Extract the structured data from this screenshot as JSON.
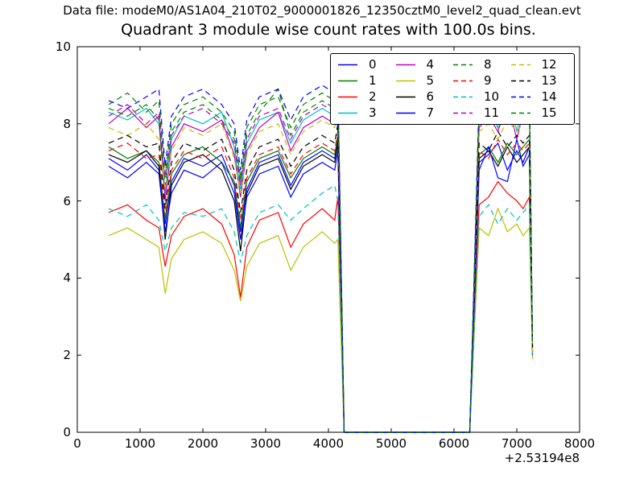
{
  "figure": {
    "data_file_label": "Data file: modeM0/AS1A04_210T02_9000001826_12350cztM0_level2_quad_clean.evt"
  },
  "chart_data": {
    "type": "line",
    "title": "Quadrant 3 module wise count rates with 100.0s bins.",
    "xlabel": "",
    "ylabel": "",
    "xlim": [
      0,
      8000
    ],
    "ylim": [
      0,
      10
    ],
    "grid": false,
    "x_axis_offset": "+2.53194e8",
    "xtick_values": [
      0,
      1000,
      2000,
      3000,
      4000,
      5000,
      6000,
      7000,
      8000
    ],
    "xtick_labels": [
      "0",
      "1000",
      "2000",
      "3000",
      "4000",
      "5000",
      "6000",
      "7000",
      "8000"
    ],
    "ytick_values": [
      0,
      2,
      4,
      6,
      8,
      10
    ],
    "ytick_labels": [
      "0",
      "2",
      "4",
      "6",
      "8",
      "10"
    ],
    "legend": {
      "position": "upper center-right",
      "columns": 4,
      "rows": 4
    },
    "x": [
      500,
      800,
      1100,
      1300,
      1400,
      1500,
      1700,
      2000,
      2300,
      2500,
      2600,
      2700,
      2900,
      3200,
      3400,
      3600,
      3900,
      4100,
      4150,
      4250,
      5000,
      6150,
      6250,
      6400,
      6550,
      6700,
      6850,
      7000,
      7100,
      7200,
      7250
    ],
    "series": [
      {
        "name": "0",
        "color": "#0000ff",
        "linestyle": "solid",
        "y": [
          7.1,
          6.8,
          7.2,
          6.8,
          5.4,
          6.5,
          7.1,
          6.9,
          7.2,
          6.4,
          5.2,
          6.3,
          7.0,
          7.2,
          6.4,
          7.0,
          7.3,
          7.1,
          7.6,
          0,
          0,
          0,
          0,
          7.0,
          7.2,
          7.5,
          6.8,
          7.3,
          7.0,
          7.4,
          2.1
        ]
      },
      {
        "name": "1",
        "color": "#008000",
        "linestyle": "solid",
        "y": [
          7.4,
          7.1,
          7.3,
          7.0,
          5.5,
          6.7,
          7.2,
          7.4,
          7.0,
          6.5,
          5.3,
          6.5,
          7.1,
          7.3,
          6.6,
          7.1,
          7.4,
          7.2,
          7.7,
          0,
          0,
          0,
          0,
          7.2,
          7.4,
          7.0,
          7.5,
          7.2,
          7.4,
          7.6,
          2.1
        ]
      },
      {
        "name": "2",
        "color": "#ff0000",
        "linestyle": "solid",
        "y": [
          5.7,
          5.9,
          5.5,
          5.3,
          4.3,
          5.1,
          5.6,
          5.8,
          5.4,
          4.6,
          3.5,
          4.8,
          5.5,
          5.7,
          4.8,
          5.4,
          5.8,
          5.5,
          6.1,
          0,
          0,
          0,
          0,
          5.9,
          6.1,
          6.5,
          6.2,
          6.0,
          5.8,
          6.1,
          2.0
        ]
      },
      {
        "name": "3",
        "color": "#00bfbf",
        "linestyle": "solid",
        "y": [
          8.3,
          8.1,
          8.4,
          8.0,
          6.2,
          7.6,
          8.2,
          8.0,
          8.3,
          7.4,
          6.3,
          7.5,
          8.1,
          8.3,
          7.5,
          8.1,
          8.4,
          8.2,
          8.6,
          0,
          0,
          0,
          0,
          8.1,
          8.3,
          7.9,
          9.0,
          7.8,
          8.5,
          8.7,
          2.2
        ]
      },
      {
        "name": "4",
        "color": "#bf00bf",
        "linestyle": "solid",
        "y": [
          8.0,
          8.4,
          7.9,
          8.2,
          6.0,
          7.4,
          8.0,
          7.8,
          8.1,
          7.2,
          6.1,
          7.3,
          7.9,
          8.3,
          7.3,
          7.9,
          8.2,
          8.0,
          8.4,
          0,
          0,
          0,
          0,
          7.9,
          8.2,
          7.8,
          8.6,
          7.6,
          8.3,
          8.5,
          2.2
        ]
      },
      {
        "name": "5",
        "color": "#bfbf00",
        "linestyle": "solid",
        "y": [
          5.1,
          5.3,
          5.0,
          4.8,
          3.6,
          4.5,
          5.0,
          5.2,
          4.9,
          4.2,
          3.4,
          4.3,
          4.9,
          5.1,
          4.2,
          4.8,
          5.2,
          4.9,
          5.0,
          0,
          0,
          0,
          0,
          5.3,
          5.1,
          5.8,
          5.2,
          5.4,
          5.1,
          5.3,
          1.9
        ]
      },
      {
        "name": "6",
        "color": "#000000",
        "linestyle": "solid",
        "y": [
          7.2,
          7.0,
          7.3,
          6.9,
          5.0,
          6.4,
          7.0,
          7.2,
          6.8,
          6.0,
          4.7,
          6.2,
          6.9,
          7.1,
          6.3,
          6.9,
          7.2,
          7.0,
          7.5,
          0,
          0,
          0,
          0,
          7.1,
          7.3,
          6.9,
          7.4,
          7.0,
          7.2,
          7.4,
          2.1
        ]
      },
      {
        "name": "7",
        "color": "#0000ff",
        "linestyle": "solid",
        "y": [
          6.9,
          6.6,
          7.0,
          6.7,
          5.2,
          6.2,
          6.8,
          6.6,
          7.0,
          6.2,
          5.0,
          6.1,
          6.7,
          6.9,
          6.1,
          6.7,
          7.0,
          6.8,
          7.3,
          0,
          0,
          0,
          0,
          6.8,
          7.4,
          6.6,
          6.5,
          7.6,
          6.9,
          7.2,
          2.0
        ]
      },
      {
        "name": "8",
        "color": "#008000",
        "linestyle": "dashed",
        "y": [
          8.4,
          8.2,
          8.5,
          8.1,
          6.4,
          7.8,
          8.3,
          8.5,
          8.1,
          7.6,
          6.5,
          7.7,
          8.3,
          8.9,
          7.7,
          8.3,
          8.6,
          8.4,
          8.8,
          0,
          0,
          0,
          0,
          8.3,
          8.5,
          8.1,
          8.6,
          8.3,
          8.5,
          8.7,
          2.2
        ]
      },
      {
        "name": "9",
        "color": "#ff0000",
        "linestyle": "dashed",
        "y": [
          7.3,
          7.5,
          7.1,
          7.2,
          5.6,
          6.8,
          7.3,
          7.1,
          7.4,
          6.6,
          5.5,
          6.6,
          7.2,
          7.4,
          6.7,
          7.2,
          7.5,
          7.3,
          7.8,
          0,
          0,
          0,
          0,
          7.3,
          7.1,
          7.6,
          7.2,
          7.5,
          7.3,
          7.5,
          2.1
        ]
      },
      {
        "name": "10",
        "color": "#00bfbf",
        "linestyle": "dashed",
        "y": [
          5.8,
          5.6,
          5.9,
          5.5,
          4.7,
          5.3,
          5.7,
          5.6,
          5.8,
          5.2,
          4.4,
          5.1,
          5.7,
          5.9,
          5.5,
          5.8,
          6.2,
          6.4,
          6.0,
          0,
          0,
          0,
          0,
          5.6,
          5.9,
          5.4,
          5.8,
          5.5,
          5.7,
          5.9,
          2.0
        ]
      },
      {
        "name": "11",
        "color": "#bf00bf",
        "linestyle": "dashed",
        "y": [
          8.2,
          8.5,
          8.0,
          8.3,
          6.6,
          7.7,
          8.2,
          8.4,
          8.0,
          7.5,
          6.4,
          7.6,
          8.2,
          8.4,
          7.6,
          8.2,
          8.5,
          8.3,
          8.7,
          0,
          0,
          0,
          0,
          8.2,
          8.4,
          8.0,
          8.5,
          8.2,
          8.4,
          8.6,
          2.2
        ]
      },
      {
        "name": "12",
        "color": "#bfbf00",
        "linestyle": "dashed",
        "y": [
          7.9,
          7.7,
          8.0,
          7.6,
          6.3,
          7.3,
          7.9,
          7.7,
          8.0,
          7.1,
          6.2,
          7.2,
          7.8,
          8.0,
          7.2,
          7.8,
          8.1,
          7.9,
          8.3,
          0,
          0,
          0,
          0,
          7.8,
          8.0,
          7.6,
          8.1,
          7.8,
          8.0,
          8.2,
          2.1
        ]
      },
      {
        "name": "13",
        "color": "#000000",
        "linestyle": "dashed",
        "y": [
          7.5,
          7.7,
          7.4,
          7.5,
          5.8,
          7.0,
          7.5,
          7.3,
          7.6,
          6.8,
          5.7,
          6.8,
          7.4,
          7.6,
          6.9,
          7.4,
          7.7,
          7.5,
          8.0,
          0,
          0,
          0,
          0,
          7.5,
          7.3,
          7.8,
          7.4,
          7.7,
          7.5,
          7.7,
          2.2
        ]
      },
      {
        "name": "14",
        "color": "#0000ff",
        "linestyle": "dashed",
        "y": [
          8.6,
          8.4,
          8.7,
          8.9,
          6.9,
          8.2,
          8.7,
          8.9,
          8.5,
          8.0,
          6.8,
          8.1,
          8.7,
          8.9,
          8.1,
          8.7,
          9.0,
          8.8,
          9.1,
          0,
          0,
          0,
          0,
          8.7,
          8.9,
          8.5,
          9.0,
          8.7,
          8.9,
          9.1,
          2.3
        ]
      },
      {
        "name": "15",
        "color": "#008000",
        "linestyle": "dashed",
        "y": [
          8.5,
          8.8,
          8.3,
          8.6,
          6.7,
          8.0,
          8.5,
          8.7,
          8.3,
          7.8,
          6.6,
          7.9,
          8.5,
          8.7,
          7.9,
          8.5,
          8.8,
          8.6,
          9.0,
          0,
          0,
          0,
          0,
          8.5,
          8.7,
          8.3,
          8.8,
          8.5,
          8.7,
          8.9,
          2.3
        ]
      }
    ],
    "colors": {
      "axis": "#000000",
      "background": "#ffffff"
    }
  }
}
